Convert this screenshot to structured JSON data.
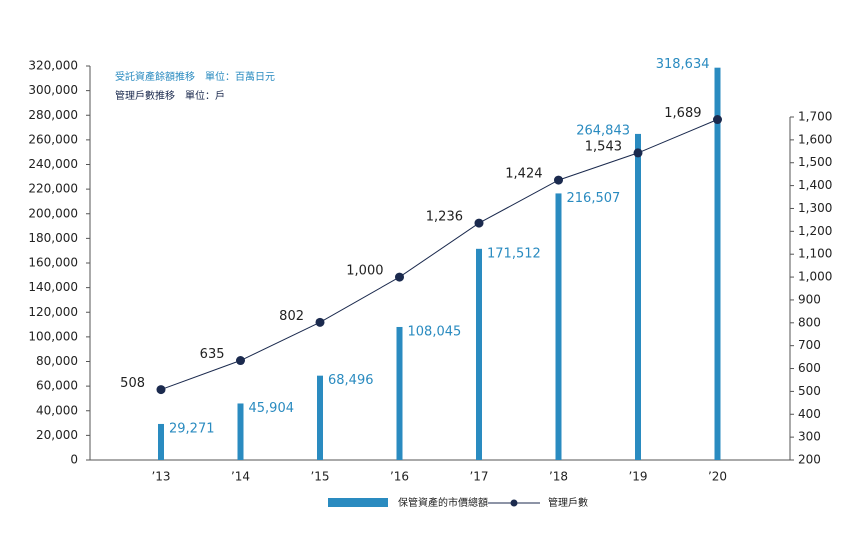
{
  "chart_data": {
    "type": "bar_line",
    "annotations": [
      "受託資產餘額推移　單位：百萬日元",
      "管理戶數推移　單位：戶"
    ],
    "categories": [
      "’13",
      "’14",
      "’15",
      "’16",
      "’17",
      "’18",
      "’19",
      "’20"
    ],
    "series": [
      {
        "name": "保管資產的市價總額",
        "type": "bar",
        "color": "#2a8bc0",
        "values": [
          29271,
          45904,
          68496,
          108045,
          171512,
          216507,
          264843,
          318634
        ],
        "value_labels": [
          "29,271",
          "45,904",
          "68,496",
          "108,045",
          "171,512",
          "216,507",
          "264,843",
          "318,634"
        ]
      },
      {
        "name": "管理戶數",
        "type": "line",
        "axis": "y2",
        "color": "#1b2a4e",
        "values": [
          508,
          635,
          802,
          1000,
          1236,
          1424,
          1543,
          1689
        ],
        "value_labels": [
          "508",
          "635",
          "802",
          "1,000",
          "1,236",
          "1,424",
          "1,543",
          "1,689"
        ]
      }
    ],
    "ylim": [
      0,
      320000
    ],
    "yticks": [
      0,
      {
        "value": 20000,
        "label": "20,000"
      },
      {
        "value": 40000,
        "label": "40,000"
      },
      {
        "value": 60000,
        "label": "60,000"
      },
      {
        "value": 80000,
        "label": "80,000"
      },
      {
        "value": 100000,
        "label": "100,000"
      },
      {
        "value": 120000,
        "label": "120,000"
      },
      {
        "value": 140000,
        "label": "140,000"
      },
      {
        "value": 160000,
        "label": "160,000"
      },
      {
        "value": 180000,
        "label": "180,000"
      },
      {
        "value": 200000,
        "label": "200,000"
      },
      {
        "value": 220000,
        "label": "220,000"
      },
      {
        "value": 240000,
        "label": "240,000"
      },
      {
        "value": 260000,
        "label": "260,000"
      },
      {
        "value": 280000,
        "label": "280,000"
      },
      {
        "value": 300000,
        "label": "300,000"
      },
      {
        "value": 320000,
        "label": "320,000"
      }
    ],
    "y2lim": [
      200,
      1700
    ],
    "y2ticks": [
      200,
      300,
      400,
      500,
      600,
      700,
      800,
      900,
      {
        "value": 1000,
        "label": "1,000"
      },
      {
        "value": 1100,
        "label": "1,100"
      },
      {
        "value": 1200,
        "label": "1,200"
      },
      {
        "value": 1300,
        "label": "1,300"
      },
      {
        "value": 1400,
        "label": "1,400"
      },
      {
        "value": 1500,
        "label": "1,500"
      },
      {
        "value": 1600,
        "label": "1,600"
      },
      {
        "value": 1700,
        "label": "1,700"
      }
    ],
    "grid": false
  }
}
